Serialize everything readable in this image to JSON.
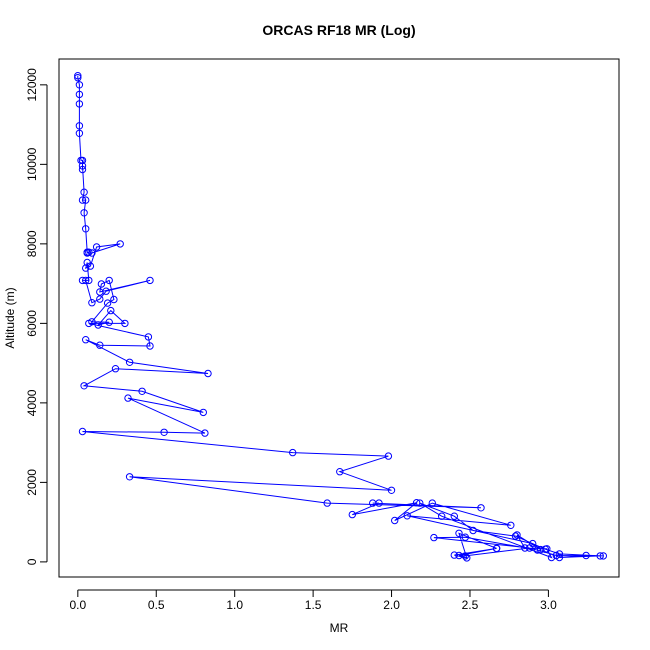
{
  "chart_data": {
    "type": "line",
    "title": "ORCAS RF18 MR (Log)",
    "xlabel": "MR",
    "ylabel": "Altitude (m)",
    "xlim": [
      -0.12,
      3.45
    ],
    "ylim": [
      -380,
      12650
    ],
    "x_ticks": [
      0.0,
      0.5,
      1.0,
      1.5,
      2.0,
      2.5,
      3.0
    ],
    "x_tick_labels": [
      "0.0",
      "0.5",
      "1.0",
      "1.5",
      "2.0",
      "2.5",
      "3.0"
    ],
    "y_ticks": [
      0,
      2000,
      4000,
      6000,
      8000,
      10000,
      12000
    ],
    "y_tick_labels": [
      "0",
      "2000",
      "4000",
      "6000",
      "8000",
      "10000",
      "12000"
    ],
    "grid": false,
    "legend": "none",
    "color": "#0000ff",
    "series": [
      {
        "marker": "open-circle",
        "x": [
          0.0,
          0.0,
          0.01,
          0.01,
          0.01,
          0.01,
          0.01,
          0.02,
          0.03,
          0.03,
          0.03,
          0.04,
          0.03,
          0.05,
          0.04,
          0.05,
          0.06,
          0.07,
          0.06,
          0.09,
          0.27,
          0.12,
          0.08,
          0.05,
          0.06,
          0.07,
          0.03,
          0.05,
          0.09,
          0.14,
          0.18,
          0.46,
          0.14,
          0.15,
          0.2,
          0.23,
          0.19,
          0.09,
          0.2,
          0.13,
          0.21,
          0.3,
          0.07,
          0.45,
          0.46,
          0.14,
          0.05,
          0.33,
          0.83,
          0.24,
          0.04,
          0.41,
          0.8,
          0.32,
          0.81,
          0.55,
          0.03,
          1.37,
          1.98,
          1.67,
          2.0,
          0.33,
          1.59,
          2.57,
          1.88,
          1.92,
          1.75,
          2.16,
          2.02,
          2.26,
          2.76,
          2.1,
          2.9,
          2.95,
          2.8,
          2.85,
          2.99,
          3.02,
          2.32,
          2.18,
          2.4,
          2.52,
          2.79,
          2.98,
          3.07,
          3.33,
          3.07,
          3.24,
          3.35,
          3.05,
          2.93,
          2.47,
          2.27,
          2.88,
          2.47,
          2.43,
          2.67,
          2.4,
          2.48,
          2.43,
          2.67
        ],
        "y": [
          12230,
          12180,
          12000,
          11760,
          11520,
          10970,
          10780,
          10100,
          10100,
          9870,
          9960,
          9300,
          9100,
          9100,
          8780,
          8380,
          7790,
          7790,
          7770,
          7770,
          8000,
          7920,
          7440,
          7390,
          7530,
          7080,
          7080,
          7080,
          6520,
          6610,
          6810,
          7080,
          6790,
          6990,
          7080,
          6600,
          6510,
          6040,
          6030,
          5960,
          6320,
          6000,
          6000,
          5660,
          5430,
          5450,
          5590,
          5020,
          4740,
          4860,
          4430,
          4290,
          3760,
          4120,
          3240,
          3260,
          3280,
          2750,
          2660,
          2270,
          1800,
          2140,
          1480,
          1360,
          1480,
          1480,
          1190,
          1490,
          1040,
          1480,
          920,
          1160,
          460,
          310,
          680,
          350,
          330,
          110,
          1150,
          1480,
          1150,
          790,
          650,
          320,
          200,
          150,
          110,
          160,
          150,
          160,
          300,
          620,
          610,
          350,
          150,
          160,
          340,
          170,
          100,
          720,
          340
        ]
      }
    ]
  }
}
